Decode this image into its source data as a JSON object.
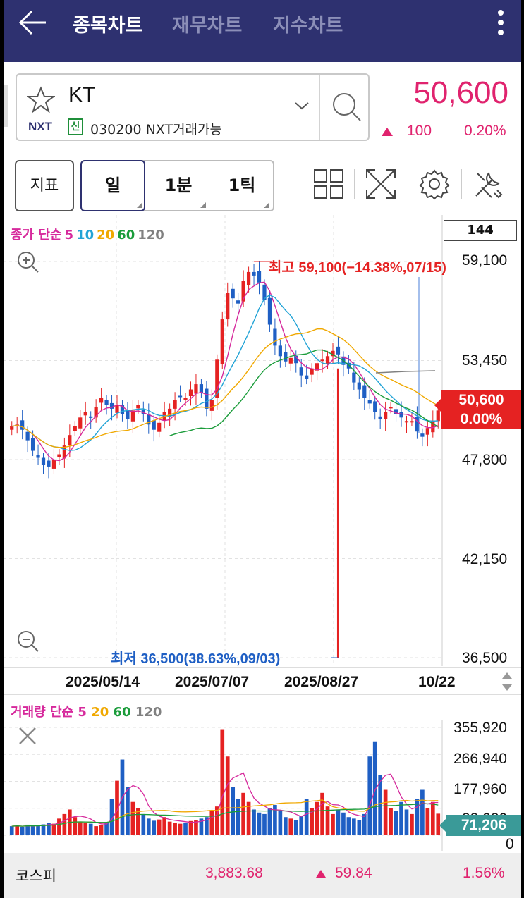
{
  "header": {
    "tabs": [
      {
        "label": "종목차트",
        "active": true
      },
      {
        "label": "재무차트",
        "active": false
      },
      {
        "label": "지수차트",
        "active": false
      }
    ]
  },
  "stock": {
    "name": "KT",
    "market": "NXT",
    "credit_badge": "신",
    "code_info": "030200 NXT거래가능",
    "price": "50,600",
    "change": "100",
    "change_pct": "0.20%",
    "color_up": "#e0236e"
  },
  "toolbar": {
    "indicator_label": "지표",
    "periods": [
      "일",
      "1분",
      "1틱"
    ],
    "active_period": "일",
    "icons": [
      "grid-icon",
      "expand-icon",
      "settings-icon",
      "tools-icon"
    ]
  },
  "chart": {
    "legend": [
      {
        "text": "종가 단순",
        "color": "#d6299c"
      },
      {
        "text": "5",
        "color": "#d6299c"
      },
      {
        "text": "10",
        "color": "#21a3d6"
      },
      {
        "text": "20",
        "color": "#f0a800"
      },
      {
        "text": "60",
        "color": "#1a9c3a"
      },
      {
        "text": "120",
        "color": "#808080"
      }
    ],
    "count_box": "144",
    "y_labels": [
      "59,100",
      "53,450",
      "47,800",
      "42,150",
      "36,500"
    ],
    "x_labels": [
      "2025/05/14",
      "2025/07/07",
      "2025/08/27",
      "10/22"
    ],
    "current_price": "50,600",
    "current_change": "0.00%",
    "high_annotation": "최고 59,100(−14.38%,07/15)",
    "low_annotation": "최저 36,500(38.63%,09/03)"
  },
  "chart_data": {
    "type": "candlestick",
    "ylim": [
      36500,
      59100
    ],
    "y_ticks": [
      59100,
      53450,
      47800,
      42150,
      36500
    ],
    "x_ticks": [
      "2025/05/14",
      "2025/07/07",
      "2025/08/27",
      "10/22"
    ],
    "high": {
      "value": 59100,
      "date": "07/15"
    },
    "low": {
      "value": 36500,
      "date": "09/03"
    },
    "last": 50600,
    "closes": [
      49700,
      49800,
      49500,
      48900,
      48300,
      47900,
      47500,
      47400,
      47800,
      48100,
      48600,
      49200,
      49700,
      50200,
      50500,
      50200,
      50800,
      51300,
      50900,
      50700,
      50900,
      50400,
      50100,
      50600,
      50900,
      50400,
      49800,
      49500,
      49900,
      50500,
      50700,
      51200,
      51400,
      51300,
      51800,
      52100,
      51600,
      50700,
      51200,
      53500,
      55800,
      57300,
      57000,
      56700,
      58000,
      58500,
      58300,
      57900,
      56900,
      55500,
      54300,
      53700,
      53400,
      53600,
      53300,
      52600,
      52400,
      53000,
      53300,
      53500,
      53700,
      54000,
      53800,
      53200,
      53000,
      52200,
      51800,
      51300,
      51000,
      50500,
      50100,
      50500,
      50800,
      50400,
      50200,
      50000,
      50000,
      49400,
      49100,
      49600,
      50000,
      50600
    ],
    "series": [
      {
        "name": "5",
        "color": "#d6299c"
      },
      {
        "name": "10",
        "color": "#21a3d6"
      },
      {
        "name": "20",
        "color": "#f0a800"
      },
      {
        "name": "60",
        "color": "#1a9c3a"
      },
      {
        "name": "120",
        "color": "#808080"
      }
    ],
    "volume": {
      "y_ticks": [
        355920,
        266940,
        177960,
        88980,
        0
      ],
      "ylim": [
        0,
        355920
      ],
      "last": 71206,
      "values": [
        30000,
        32000,
        28000,
        35000,
        31000,
        33000,
        36000,
        40000,
        38000,
        55000,
        70000,
        85000,
        60000,
        45000,
        40000,
        38000,
        30000,
        35000,
        42000,
        120000,
        180000,
        250000,
        160000,
        110000,
        90000,
        70000,
        55000,
        48000,
        52000,
        60000,
        45000,
        40000,
        38000,
        42000,
        47000,
        50000,
        55000,
        60000,
        80000,
        95000,
        350000,
        260000,
        160000,
        120000,
        140000,
        110000,
        85000,
        75000,
        70000,
        90000,
        100000,
        80000,
        60000,
        55000,
        50000,
        65000,
        120000,
        90000,
        110000,
        140000,
        95000,
        70000,
        85000,
        75000,
        60000,
        55000,
        50000,
        70000,
        260000,
        310000,
        200000,
        150000,
        90000,
        80000,
        110000,
        85000,
        70000,
        120000,
        150000,
        90000,
        110000,
        71206
      ]
    }
  },
  "volume_panel": {
    "legend": [
      {
        "text": "거래량 단순",
        "color": "#d6299c"
      },
      {
        "text": "5",
        "color": "#d6299c"
      },
      {
        "text": "20",
        "color": "#f0a800"
      },
      {
        "text": "60",
        "color": "#1a9c3a"
      },
      {
        "text": "120",
        "color": "#808080"
      }
    ],
    "y_labels": [
      "355,920",
      "266,940",
      "177,960",
      "88,980",
      "0"
    ],
    "current": "71,206"
  },
  "index_bar": {
    "label": "코스피",
    "value": "3,883.68",
    "change": "59.84",
    "change_pct": "1.56%"
  }
}
